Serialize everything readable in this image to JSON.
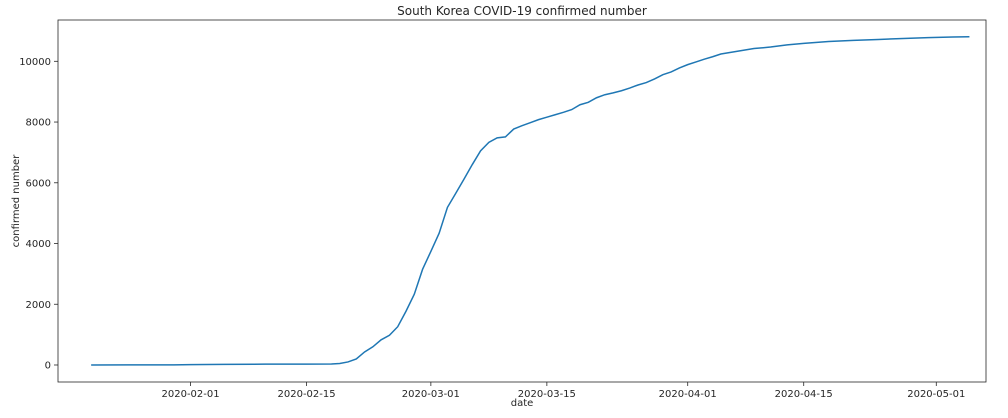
{
  "chart_data": {
    "type": "line",
    "title": "South Korea COVID-19 confirmed number",
    "xlabel": "date",
    "ylabel": "confirmed number",
    "x_type": "date",
    "xlim": [
      "2020-01-16",
      "2020-05-07"
    ],
    "ylim": [
      -560,
      11360
    ],
    "x_ticks": [
      "2020-02-01",
      "2020-02-15",
      "2020-03-01",
      "2020-03-15",
      "2020-04-01",
      "2020-04-15",
      "2020-05-01"
    ],
    "y_ticks": [
      0,
      2000,
      4000,
      6000,
      8000,
      10000
    ],
    "grid": false,
    "legend": "none",
    "color": "#1f77b4",
    "series": [
      {
        "x": [
          "2020-01-20",
          "2020-01-25",
          "2020-01-30",
          "2020-02-01",
          "2020-02-05",
          "2020-02-10",
          "2020-02-15",
          "2020-02-18",
          "2020-02-19",
          "2020-02-20",
          "2020-02-21",
          "2020-02-22",
          "2020-02-23",
          "2020-02-24",
          "2020-02-25",
          "2020-02-26",
          "2020-02-27",
          "2020-02-28",
          "2020-02-29",
          "2020-03-01",
          "2020-03-02",
          "2020-03-03",
          "2020-03-04",
          "2020-03-05",
          "2020-03-06",
          "2020-03-07",
          "2020-03-08",
          "2020-03-09",
          "2020-03-10",
          "2020-03-11",
          "2020-03-12",
          "2020-03-13",
          "2020-03-14",
          "2020-03-15",
          "2020-03-16",
          "2020-03-17",
          "2020-03-18",
          "2020-03-19",
          "2020-03-20",
          "2020-03-21",
          "2020-03-22",
          "2020-03-23",
          "2020-03-24",
          "2020-03-25",
          "2020-03-26",
          "2020-03-27",
          "2020-03-28",
          "2020-03-29",
          "2020-03-30",
          "2020-03-31",
          "2020-04-01",
          "2020-04-02",
          "2020-04-03",
          "2020-04-04",
          "2020-04-05",
          "2020-04-07",
          "2020-04-09",
          "2020-04-11",
          "2020-04-13",
          "2020-04-15",
          "2020-04-18",
          "2020-04-21",
          "2020-04-24",
          "2020-04-27",
          "2020-04-30",
          "2020-05-03",
          "2020-05-05"
        ],
        "y": [
          1,
          2,
          5,
          12,
          19,
          28,
          29,
          31,
          50,
          100,
          200,
          430,
          600,
          830,
          980,
          1260,
          1770,
          2330,
          3150,
          3740,
          4340,
          5190,
          5650,
          6120,
          6600,
          7050,
          7330,
          7480,
          7510,
          7770,
          7880,
          7980,
          8080,
          8160,
          8240,
          8320,
          8410,
          8570,
          8650,
          8800,
          8900,
          8960,
          9030,
          9120,
          9220,
          9300,
          9420,
          9560,
          9650,
          9780,
          9890,
          9980,
          10070,
          10150,
          10240,
          10330,
          10420,
          10470,
          10540,
          10590,
          10650,
          10690,
          10720,
          10750,
          10780,
          10800,
          10810
        ]
      }
    ]
  }
}
